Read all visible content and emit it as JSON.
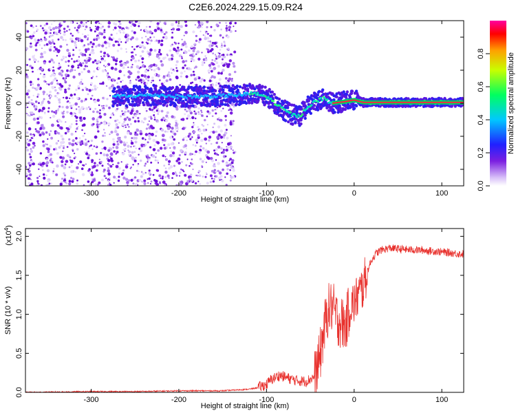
{
  "title": "C2E6.2024.229.15.09.R24",
  "chart_data": [
    {
      "type": "heatmap",
      "title": "C2E6.2024.229.15.09.R24",
      "xlabel": "Height of straight line (km)",
      "ylabel": "Frequency (Hz)",
      "xlim": [
        -375,
        125
      ],
      "ylim": [
        -50,
        50
      ],
      "x_ticks": [
        "-300",
        "-200",
        "-100",
        "0",
        "100"
      ],
      "y_ticks": [
        "40",
        "20",
        "0",
        "-20",
        "-40"
      ],
      "colorbar": {
        "label": "Normalized spectral amplitude",
        "range": [
          0,
          1
        ],
        "ticks": [
          "0.0",
          "0.2",
          "0.4",
          "0.6",
          "0.8"
        ],
        "colormap": [
          "#ffffff",
          "#7b1fe0",
          "#2020ff",
          "#00c8ff",
          "#00ff60",
          "#c8ff00",
          "#ffa000",
          "#ff0000",
          "#ff00a0"
        ]
      },
      "ridge": {
        "x": [
          -275,
          -250,
          -225,
          -200,
          -175,
          -150,
          -130,
          -115,
          -100,
          -90,
          -80,
          -70,
          -62,
          -55,
          -45,
          -35,
          -25,
          -10,
          0,
          10,
          50,
          100,
          125
        ],
        "y": [
          4,
          4.5,
          5,
          4,
          4,
          4.5,
          5,
          6,
          4,
          0,
          -4,
          -7,
          -8,
          -3,
          1,
          3,
          0,
          1,
          2,
          0.5,
          0.5,
          0.5,
          0.5
        ]
      },
      "noise_region_x": [
        -375,
        -135
      ]
    },
    {
      "type": "line",
      "xlabel": "Height of straight line (km)",
      "ylabel": "SNR (10 * v/v)",
      "y_scale_label": "(x10",
      "y_scale_exp": "4",
      "xlim": [
        -375,
        125
      ],
      "ylim": [
        0,
        2.1
      ],
      "x_ticks": [
        "-300",
        "-200",
        "-100",
        "0",
        "100"
      ],
      "y_ticks": [
        "0.0",
        "0.5",
        "1.0",
        "1.5",
        "2.0"
      ],
      "line_color": "#e8302c",
      "series": [
        {
          "x": [
            -375,
            -300,
            -250,
            -200,
            -150,
            -120,
            -110,
            -100,
            -95,
            -85,
            -75,
            -65,
            -55,
            -45,
            -40,
            -35,
            -30,
            -25,
            -20,
            -15,
            -10,
            -5,
            0,
            5,
            10,
            15,
            20,
            25,
            30,
            40,
            60,
            80,
            100,
            125
          ],
          "y": [
            0.0,
            0.01,
            0.01,
            0.02,
            0.02,
            0.04,
            0.06,
            0.1,
            0.16,
            0.22,
            0.18,
            0.15,
            0.14,
            0.2,
            0.4,
            0.75,
            1.05,
            1.1,
            0.95,
            0.9,
            0.85,
            1.1,
            1.15,
            1.25,
            1.35,
            1.55,
            1.7,
            1.78,
            1.82,
            1.85,
            1.83,
            1.82,
            1.8,
            1.77
          ]
        }
      ]
    }
  ]
}
